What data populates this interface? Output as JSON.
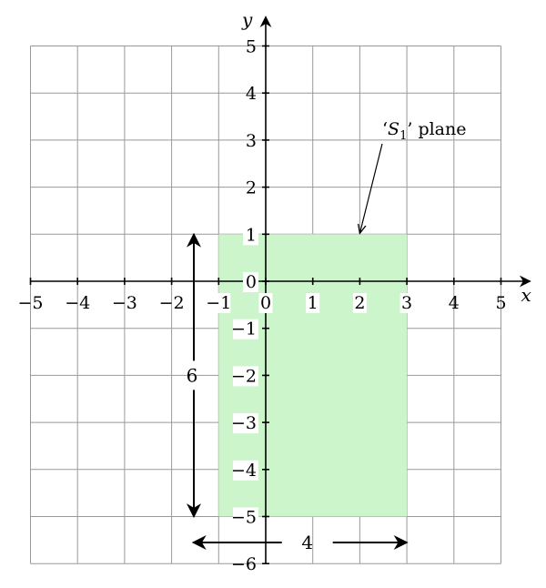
{
  "diagram": {
    "axes": {
      "x_name": "x",
      "y_name": "y",
      "x_ticks": [
        -5,
        -4,
        -3,
        -2,
        -1,
        0,
        1,
        2,
        3,
        4,
        5
      ],
      "y_ticks": [
        5,
        4,
        3,
        2,
        1,
        0,
        -1,
        -2,
        -3,
        -4,
        -5,
        -6
      ],
      "grid": true
    },
    "region": {
      "x_range": [
        -1,
        3
      ],
      "y_range": [
        -5,
        1
      ],
      "color": "#ccf5cc"
    },
    "annotation": {
      "label_prefix": "‘",
      "label_symbol": "S",
      "label_subscript": "1",
      "label_suffix": "’ plane",
      "target": [
        2,
        1
      ]
    },
    "dimensions": {
      "height_label": "6",
      "width_label": "4"
    }
  }
}
